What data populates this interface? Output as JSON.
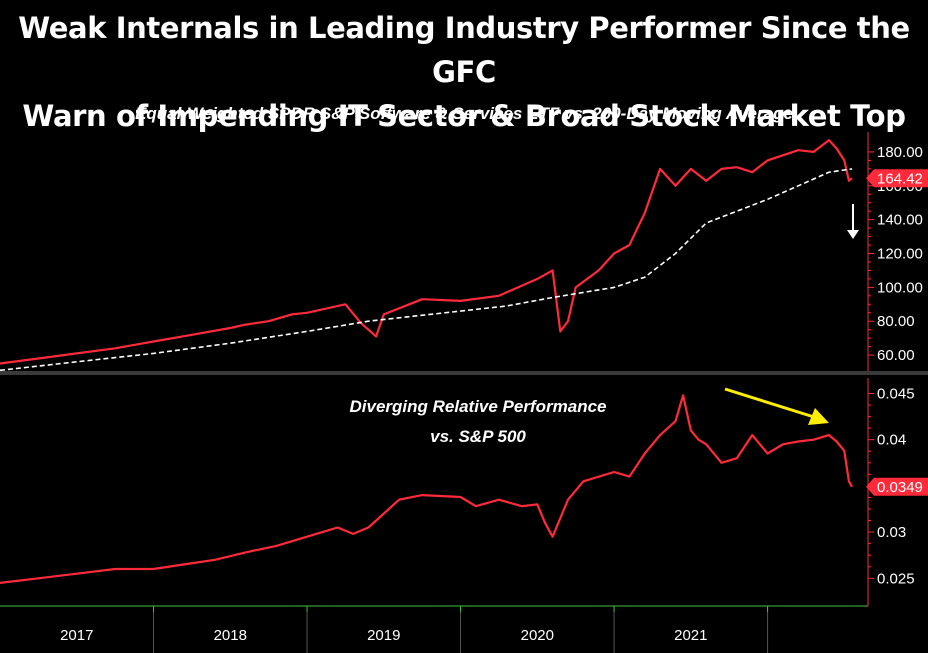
{
  "title_line1": "Weak Internals in Leading Industry Performer Since the GFC",
  "title_line2": "Warn of Impending IT Sector & Broad Stock Market Top",
  "subtitle": "Equal-Weighted SPDR S&P Software & Services ETF vs. 200-Day Moving Average",
  "annotation_line1": "Diverging Relative Performance",
  "annotation_line2": "vs. S&P 500",
  "colors": {
    "price": "#ff2a3a",
    "ma": "#ffffff",
    "arrow_yellow": "#ffee00",
    "background": "#000000"
  },
  "chart_data": [
    {
      "type": "line",
      "x_labels": [
        "2017",
        "2018",
        "2019",
        "2020",
        "2021"
      ],
      "yticks": [
        "60.00",
        "80.00",
        "100.00",
        "120.00",
        "140.00",
        "160.00",
        "180.00"
      ],
      "last_value_label": "164.42",
      "ylim": [
        50,
        190
      ],
      "series": [
        {
          "role": "price",
          "color": "#ff2a3a",
          "x": [
            2016.5,
            2016.75,
            2017.0,
            2017.25,
            2017.5,
            2017.75,
            2018.0,
            2018.1,
            2018.25,
            2018.4,
            2018.5,
            2018.75,
            2018.85,
            2018.95,
            2019.0,
            2019.25,
            2019.5,
            2019.75,
            2020.0,
            2020.1,
            2020.15,
            2020.2,
            2020.25,
            2020.4,
            2020.5,
            2020.6,
            2020.7,
            2020.8,
            2020.9,
            2021.0,
            2021.1,
            2021.2,
            2021.3,
            2021.4,
            2021.5,
            2021.6,
            2021.7,
            2021.8,
            2021.9,
            2021.95,
            2022.0,
            2022.03,
            2022.05
          ],
          "values": [
            55,
            58,
            61,
            64,
            68,
            72,
            76,
            78,
            80,
            84,
            85,
            90,
            79,
            71,
            84,
            93,
            92,
            95,
            105,
            110,
            74,
            80,
            100,
            110,
            120,
            125,
            144,
            170,
            160,
            170,
            163,
            170,
            171,
            168,
            175,
            178,
            181,
            180,
            187,
            182,
            175,
            163,
            164.42
          ]
        },
        {
          "role": "moving_average",
          "color": "#ffffff",
          "x": [
            2016.5,
            2017.0,
            2017.5,
            2018.0,
            2018.5,
            2018.9,
            2019.2,
            2019.5,
            2019.8,
            2020.1,
            2020.3,
            2020.5,
            2020.7,
            2020.9,
            2021.1,
            2021.3,
            2021.5,
            2021.7,
            2021.9,
            2022.05
          ],
          "values": [
            51,
            56,
            61,
            67,
            74,
            80,
            83,
            86,
            89,
            94,
            97,
            100,
            106,
            120,
            138,
            145,
            152,
            160,
            168,
            170
          ]
        }
      ]
    },
    {
      "type": "line",
      "x_labels": [
        "2017",
        "2018",
        "2019",
        "2020",
        "2021"
      ],
      "yticks": [
        "0.025",
        "0.03",
        "0.035",
        "0.04",
        "0.045"
      ],
      "last_value_label": "0.0349",
      "ylim": [
        0.022,
        0.047
      ],
      "series": [
        {
          "role": "relative_performance",
          "color": "#ff2a3a",
          "x": [
            2016.5,
            2016.75,
            2017.0,
            2017.25,
            2017.5,
            2017.7,
            2017.9,
            2018.1,
            2018.3,
            2018.5,
            2018.6,
            2018.7,
            2018.8,
            2018.9,
            2019.0,
            2019.1,
            2019.25,
            2019.5,
            2019.6,
            2019.75,
            2019.9,
            2020.0,
            2020.05,
            2020.1,
            2020.2,
            2020.3,
            2020.5,
            2020.6,
            2020.7,
            2020.8,
            2020.9,
            2020.95,
            2021.0,
            2021.05,
            2021.1,
            2021.2,
            2021.3,
            2021.4,
            2021.5,
            2021.6,
            2021.7,
            2021.8,
            2021.9,
            2021.95,
            2022.0,
            2022.03,
            2022.05
          ],
          "values": [
            0.0245,
            0.025,
            0.0255,
            0.026,
            0.026,
            0.0265,
            0.027,
            0.0278,
            0.0285,
            0.0295,
            0.03,
            0.0305,
            0.0298,
            0.0305,
            0.032,
            0.0335,
            0.034,
            0.0338,
            0.0328,
            0.0335,
            0.0328,
            0.033,
            0.031,
            0.0295,
            0.0335,
            0.0355,
            0.0365,
            0.036,
            0.0385,
            0.0405,
            0.042,
            0.0448,
            0.041,
            0.04,
            0.0395,
            0.0375,
            0.038,
            0.0405,
            0.0385,
            0.0395,
            0.0398,
            0.04,
            0.0405,
            0.0398,
            0.0388,
            0.0355,
            0.0349
          ]
        }
      ]
    }
  ]
}
